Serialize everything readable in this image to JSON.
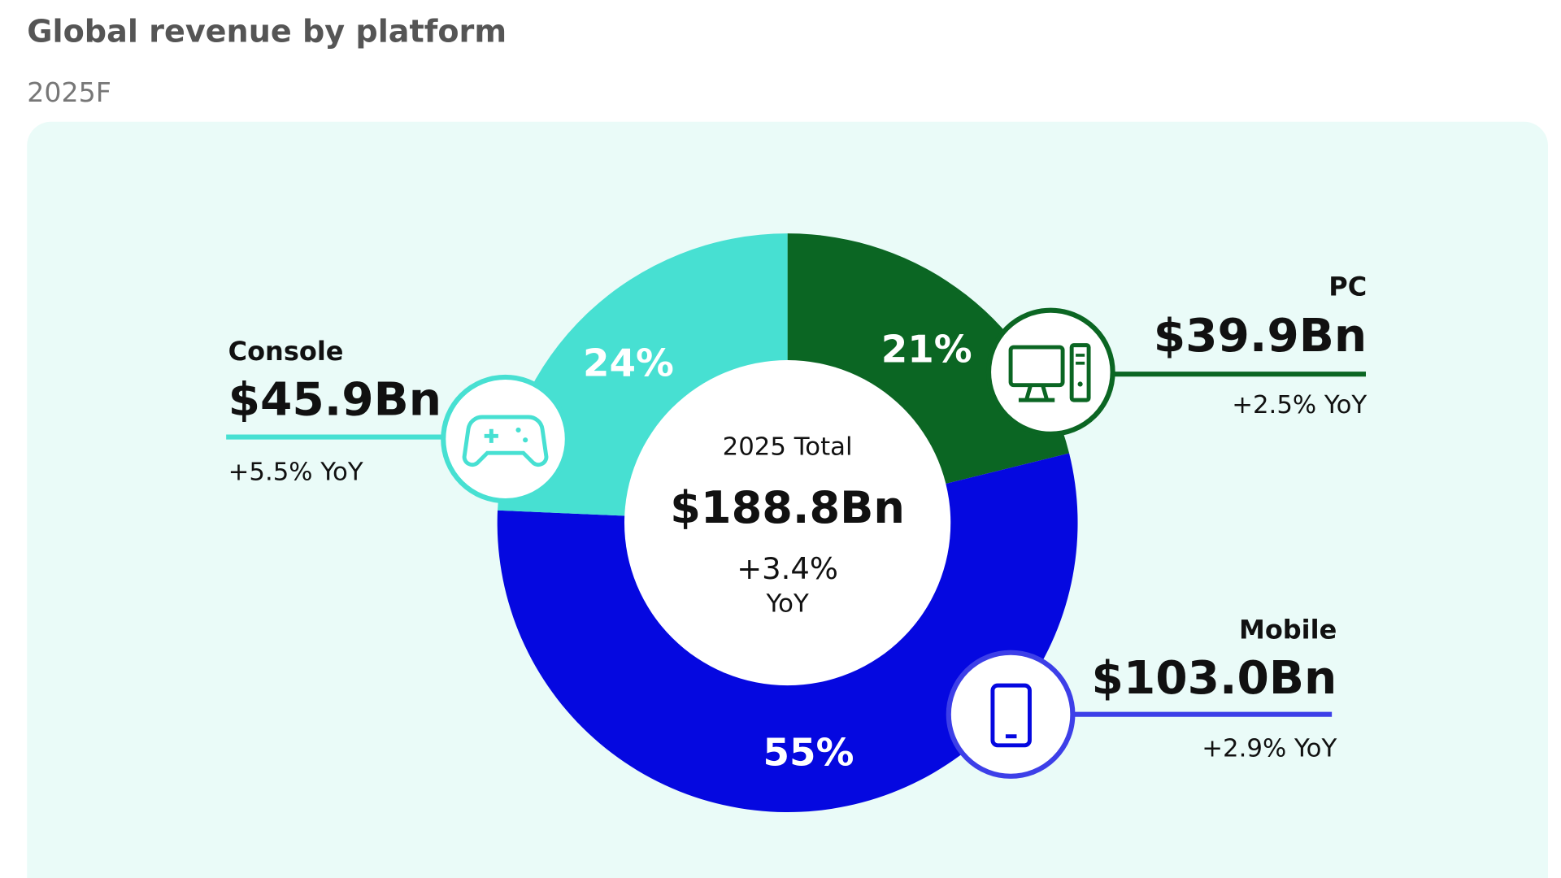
{
  "title": "Global revenue by platform",
  "subtitle": "2025F",
  "colors": {
    "background": "#eafbf8",
    "console": "#47e0d2",
    "pc": "#0b6623",
    "mobile": "#0508e0",
    "text": "#111111",
    "title": "#555555",
    "subtitle": "#777777"
  },
  "chart_data": {
    "type": "pie",
    "donut": true,
    "title": "Global revenue by platform",
    "subtitle": "2025F",
    "center": {
      "label": "2025 Total",
      "value": "$188.8Bn",
      "growth": "+3.4%",
      "growth_unit": "YoY"
    },
    "slices": [
      {
        "key": "pc",
        "name": "PC",
        "value": 39.9,
        "value_label": "$39.9Bn",
        "percent_label": "21%",
        "yoy": "+2.5% YoY",
        "color": "#0b6623",
        "icon": "desktop-computer-icon"
      },
      {
        "key": "mobile",
        "name": "Mobile",
        "value": 103.0,
        "value_label": "$103.0Bn",
        "percent_label": "55%",
        "yoy": "+2.9% YoY",
        "color": "#0508e0",
        "icon": "smartphone-icon"
      },
      {
        "key": "console",
        "name": "Console",
        "value": 45.9,
        "value_label": "$45.9Bn",
        "percent_label": "24%",
        "yoy": "+5.5% YoY",
        "color": "#47e0d2",
        "icon": "gamepad-icon"
      }
    ],
    "start": "top",
    "direction": "clockwise",
    "unit": "USD billions"
  }
}
